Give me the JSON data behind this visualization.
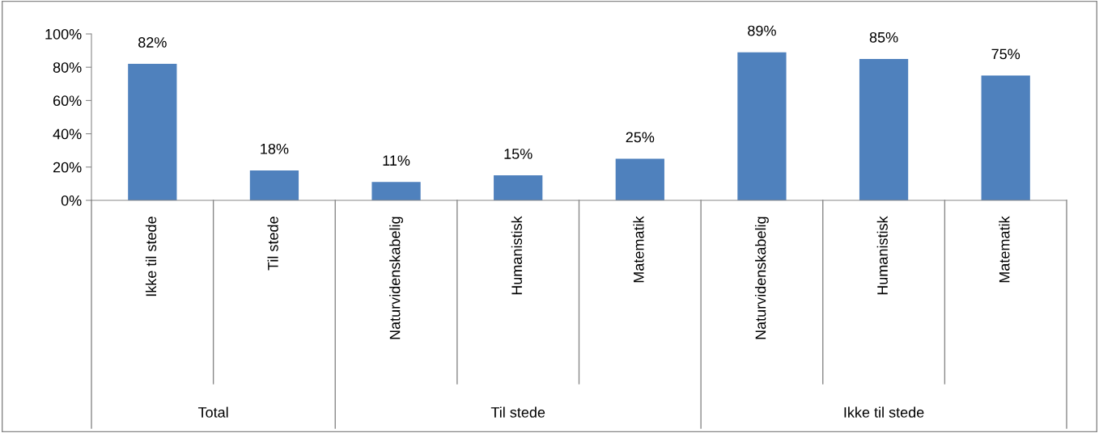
{
  "chart_data": {
    "type": "bar",
    "categories": [
      "Ikke til stede",
      "Til stede",
      "Naturvidenskabelig",
      "Humanistisk",
      "Matematik",
      "Naturvidenskabelig",
      "Humanistisk",
      "Matematik"
    ],
    "values": [
      82,
      18,
      11,
      15,
      25,
      89,
      85,
      75
    ],
    "value_labels": [
      "82%",
      "18%",
      "11%",
      "15%",
      "25%",
      "89%",
      "85%",
      "75%"
    ],
    "color": "#4f81bd",
    "ylim": [
      0,
      100
    ],
    "yticks": [
      {
        "value": 0,
        "label": "0%"
      },
      {
        "value": 20,
        "label": "20%"
      },
      {
        "value": 40,
        "label": "40%"
      },
      {
        "value": 60,
        "label": "60%"
      },
      {
        "value": 80,
        "label": "80%"
      },
      {
        "value": 100,
        "label": "100%"
      }
    ],
    "annotations": [
      "Total",
      "Til stede",
      "Ikke til stede"
    ],
    "grid": false,
    "legend": false
  }
}
